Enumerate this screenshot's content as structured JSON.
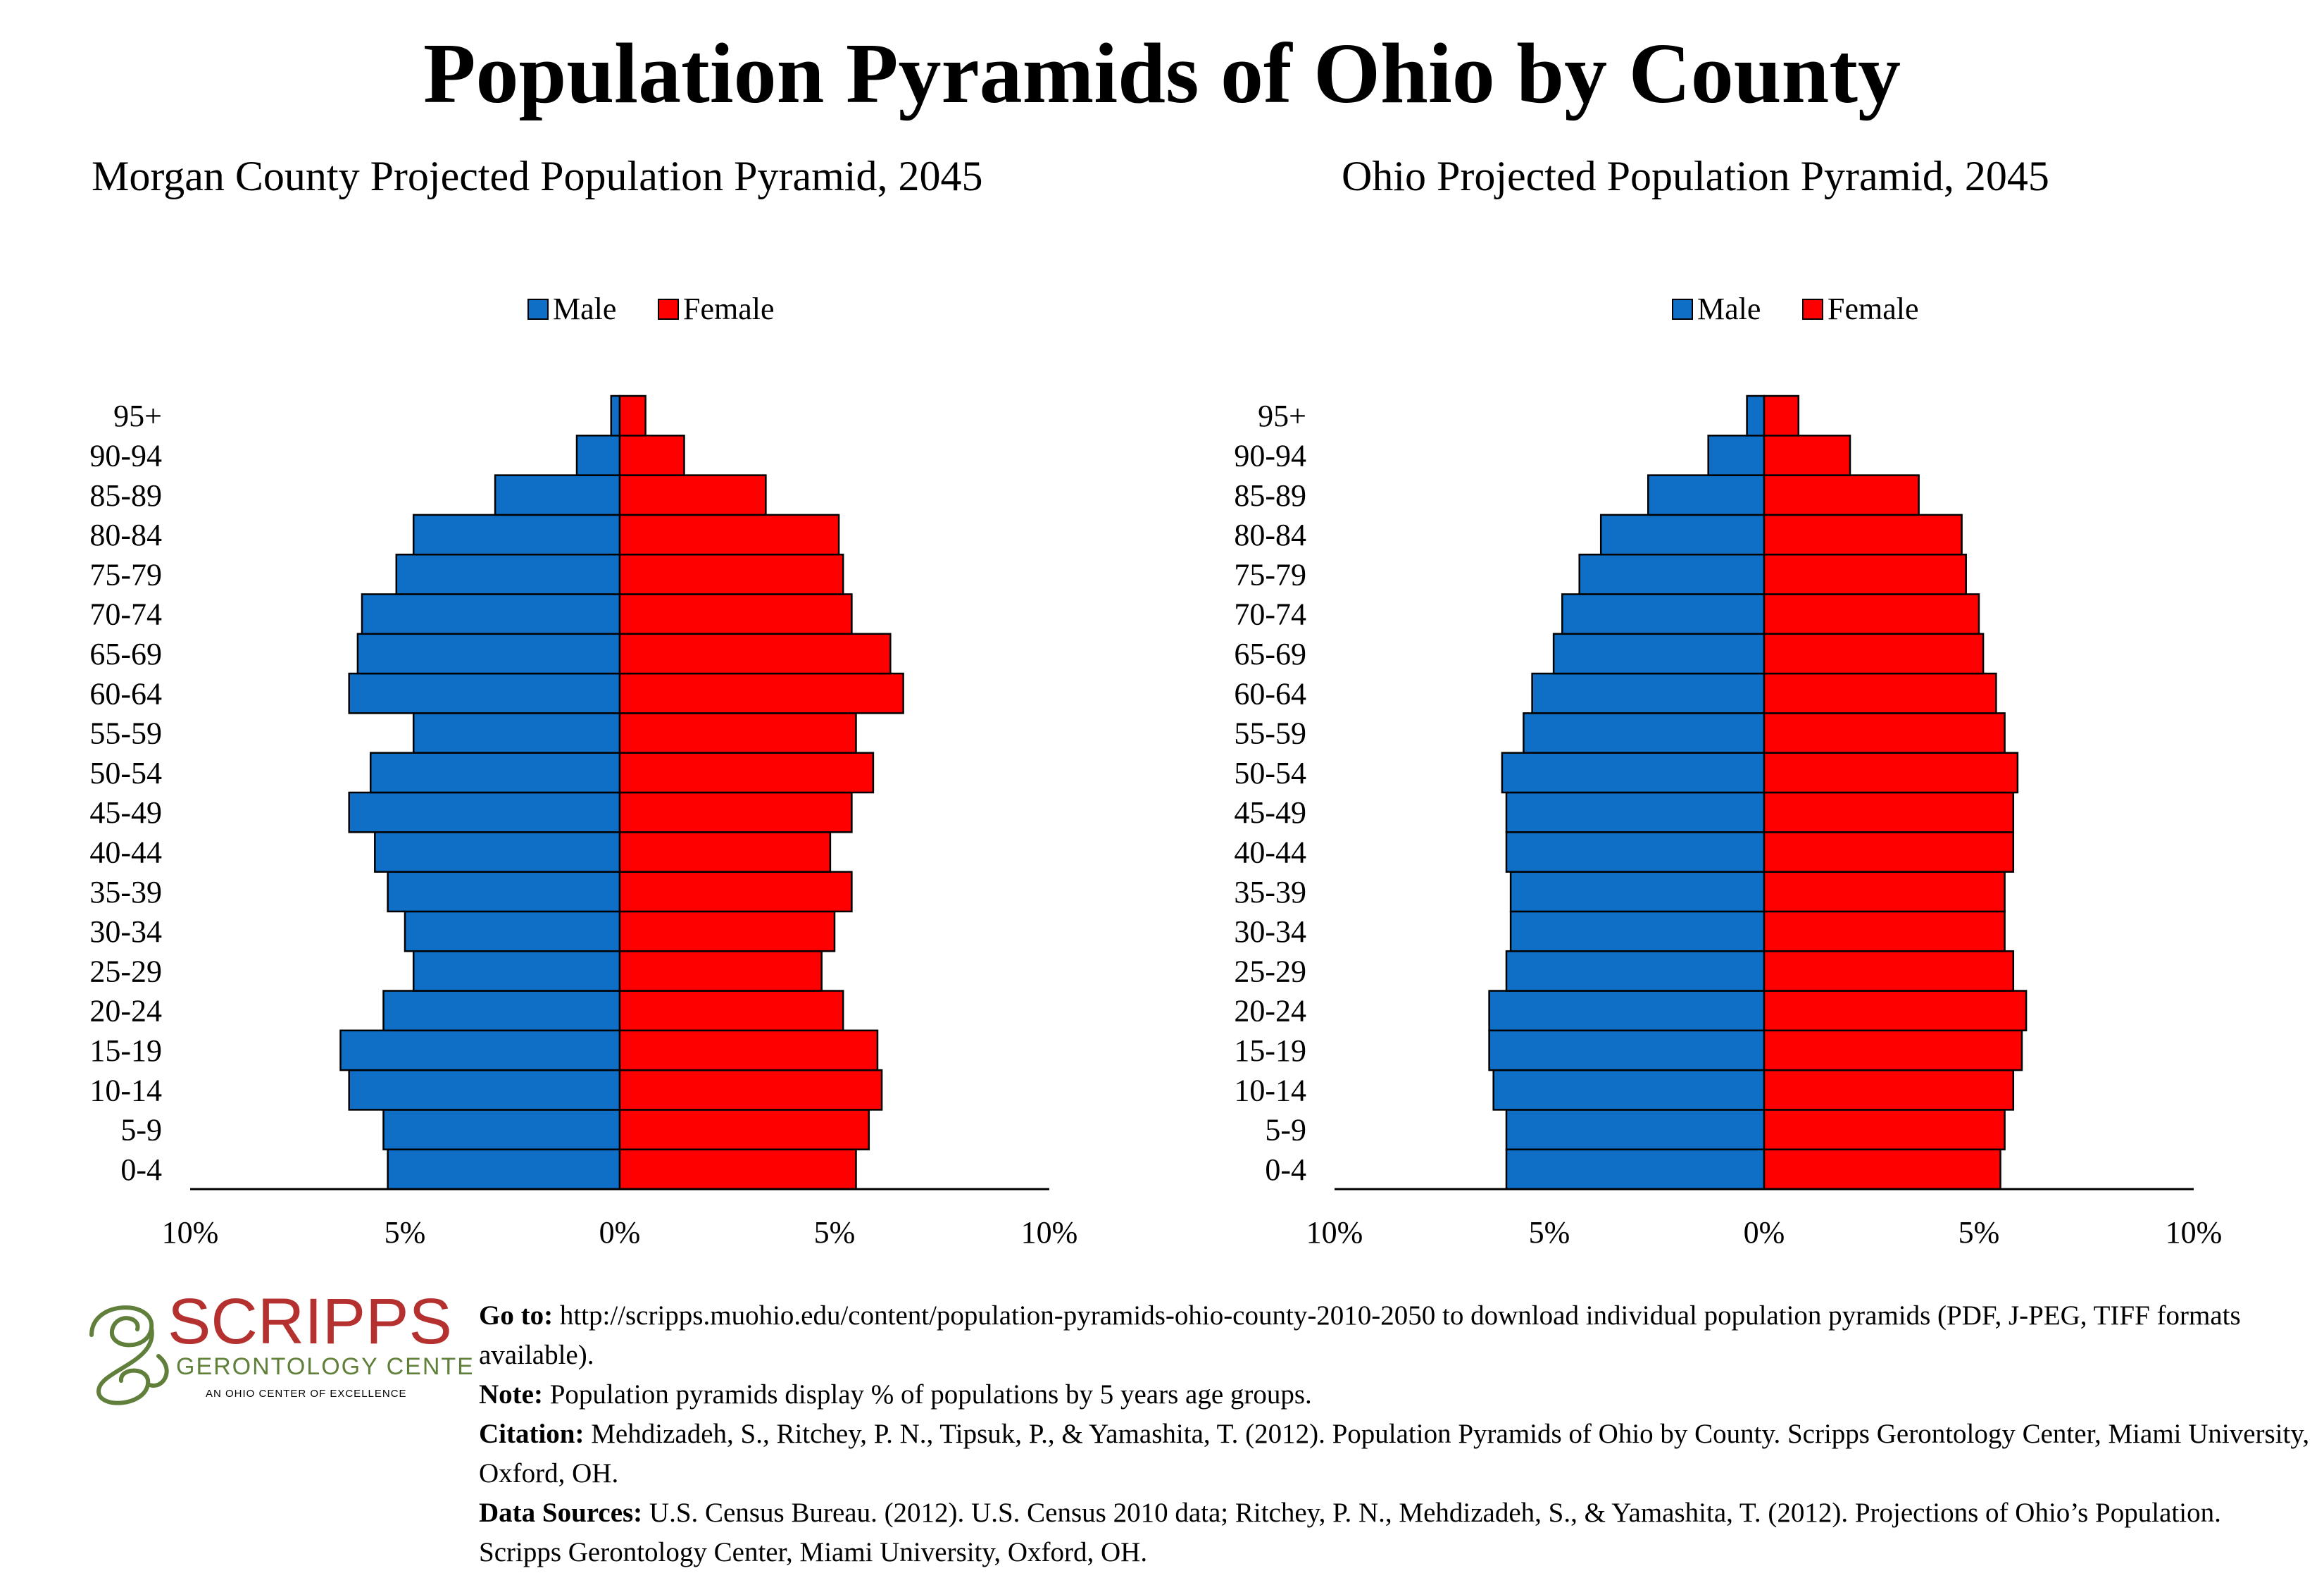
{
  "header": {
    "title": "Population Pyramids of Ohio by County"
  },
  "chart_data": [
    {
      "type": "bar",
      "subtype": "population-pyramid",
      "title": "Morgan County Projected Population Pyramid, 2045",
      "categories": [
        "0-4",
        "5-9",
        "10-14",
        "15-19",
        "20-24",
        "25-29",
        "30-34",
        "35-39",
        "40-44",
        "45-49",
        "50-54",
        "55-59",
        "60-64",
        "65-69",
        "70-74",
        "75-79",
        "80-84",
        "85-89",
        "90-94",
        "95+"
      ],
      "series": [
        {
          "name": "Male",
          "color": "#0F6FC6",
          "values": [
            5.4,
            5.5,
            6.3,
            6.5,
            5.5,
            4.8,
            5.0,
            5.4,
            5.7,
            6.3,
            5.8,
            4.8,
            6.3,
            6.1,
            6.0,
            5.2,
            4.8,
            2.9,
            1.0,
            0.2
          ]
        },
        {
          "name": "Female",
          "color": "#FF0000",
          "values": [
            5.5,
            5.8,
            6.1,
            6.0,
            5.2,
            4.7,
            5.0,
            5.4,
            4.9,
            5.4,
            5.9,
            5.5,
            6.6,
            6.3,
            5.4,
            5.2,
            5.1,
            3.4,
            1.5,
            0.6
          ]
        }
      ],
      "xlim": [
        -10,
        10
      ],
      "xticks": [
        "10%",
        "5%",
        "0%",
        "5%",
        "10%"
      ],
      "legend": "top-center"
    },
    {
      "type": "bar",
      "subtype": "population-pyramid",
      "title": "Ohio Projected Population Pyramid, 2045",
      "categories": [
        "0-4",
        "5-9",
        "10-14",
        "15-19",
        "20-24",
        "25-29",
        "30-34",
        "35-39",
        "40-44",
        "45-49",
        "50-54",
        "55-59",
        "60-64",
        "65-69",
        "70-74",
        "75-79",
        "80-84",
        "85-89",
        "90-94",
        "95+"
      ],
      "series": [
        {
          "name": "Male",
          "color": "#0F6FC6",
          "values": [
            6.0,
            6.0,
            6.3,
            6.4,
            6.4,
            6.0,
            5.9,
            5.9,
            6.0,
            6.0,
            6.1,
            5.6,
            5.4,
            4.9,
            4.7,
            4.3,
            3.8,
            2.7,
            1.3,
            0.4
          ]
        },
        {
          "name": "Female",
          "color": "#FF0000",
          "values": [
            5.5,
            5.6,
            5.8,
            6.0,
            6.1,
            5.8,
            5.6,
            5.6,
            5.8,
            5.8,
            5.9,
            5.6,
            5.4,
            5.1,
            5.0,
            4.7,
            4.6,
            3.6,
            2.0,
            0.8
          ]
        }
      ],
      "xlim": [
        -10,
        10
      ],
      "xticks": [
        "10%",
        "5%",
        "0%",
        "5%",
        "10%"
      ],
      "legend": "top-center"
    }
  ],
  "logo": {
    "name": "SCRIPPS",
    "sub": "GERONTOLOGY CENTER",
    "tagline": "AN OHIO CENTER OF EXCELLENCE",
    "color": "#B5312F",
    "accent": "#5F7F3A"
  },
  "footer": {
    "goto_label": "Go to:",
    "goto_text": " http://scripps.muohio.edu/content/population-pyramids-ohio-county-2010-2050 to download individual population pyramids (PDF, J-PEG, TIFF formats available).",
    "note_label": "Note:",
    "note_text": " Population pyramids display % of populations by 5 years age groups.",
    "citation_label": "Citation:",
    "citation_text": " Mehdizadeh, S., Ritchey, P. N., Tipsuk, P., & Yamashita, T. (2012). Population Pyramids of Ohio by County. Scripps Gerontology Center, Miami University, Oxford, OH.",
    "sources_label": "Data Sources:",
    "sources_text": " U.S. Census Bureau. (2012). U.S. Census 2010 data; Ritchey, P. N., Mehdizadeh, S., & Yamashita, T. (2012). Projections of Ohio’s Population. Scripps Gerontology Center, Miami University, Oxford, OH."
  }
}
